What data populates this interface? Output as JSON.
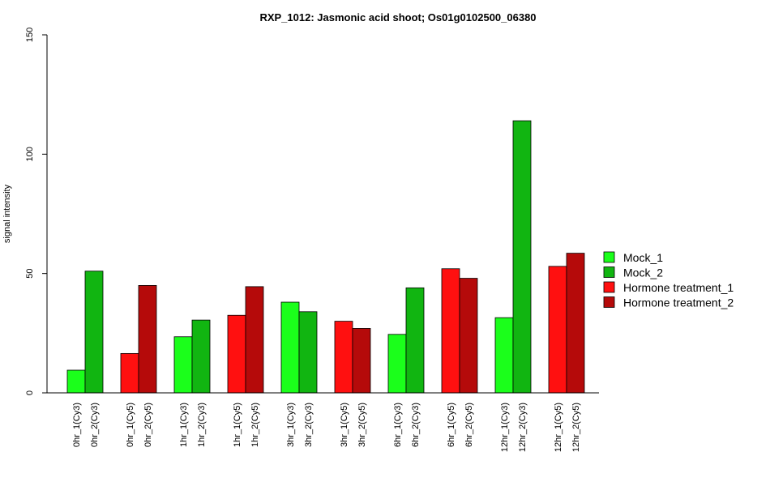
{
  "chart_data": {
    "type": "bar",
    "title": "RXP_1012: Jasmonic acid shoot; Os01g0102500_06380",
    "ylabel": "signal intensity",
    "xlabel": "",
    "ylim": [
      0,
      150
    ],
    "yticks": [
      0,
      50,
      100,
      150
    ],
    "grid": false,
    "legend_position": "right",
    "legend": [
      {
        "name": "Mock_1",
        "color": "#1BFF1B"
      },
      {
        "name": "Mock_2",
        "color": "#11B511"
      },
      {
        "name": "Hormone treatment_1",
        "color": "#FF1010"
      },
      {
        "name": "Hormone treatment_2",
        "color": "#B50A0A"
      }
    ],
    "bars": [
      {
        "label": "0hr_1(Cy3)",
        "value": 9.5,
        "series": 0
      },
      {
        "label": "0hr_2(Cy3)",
        "value": 51,
        "series": 1
      },
      {
        "label": "0hr_1(Cy5)",
        "value": 16.5,
        "series": 2
      },
      {
        "label": "0hr_2(Cy5)",
        "value": 45,
        "series": 3
      },
      {
        "label": "1hr_1(Cy3)",
        "value": 23.5,
        "series": 0
      },
      {
        "label": "1hr_2(Cy3)",
        "value": 30.5,
        "series": 1
      },
      {
        "label": "1hr_1(Cy5)",
        "value": 32.5,
        "series": 2
      },
      {
        "label": "1hr_2(Cy5)",
        "value": 44.5,
        "series": 3
      },
      {
        "label": "3hr_1(Cy3)",
        "value": 38,
        "series": 0
      },
      {
        "label": "3hr_2(Cy3)",
        "value": 34,
        "series": 1
      },
      {
        "label": "3hr_1(Cy5)",
        "value": 30,
        "series": 2
      },
      {
        "label": "3hr_2(Cy5)",
        "value": 27,
        "series": 3
      },
      {
        "label": "6hr_1(Cy3)",
        "value": 24.5,
        "series": 0
      },
      {
        "label": "6hr_2(Cy3)",
        "value": 44,
        "series": 1
      },
      {
        "label": "6hr_1(Cy5)",
        "value": 52,
        "series": 2
      },
      {
        "label": "6hr_2(Cy5)",
        "value": 48,
        "series": 3
      },
      {
        "label": "12hr_1(Cy3)",
        "value": 31.5,
        "series": 0
      },
      {
        "label": "12hr_2(Cy3)",
        "value": 114,
        "series": 1
      },
      {
        "label": "12hr_1(Cy5)",
        "value": 53,
        "series": 2
      },
      {
        "label": "12hr_2(Cy5)",
        "value": 58.5,
        "series": 3
      }
    ]
  }
}
